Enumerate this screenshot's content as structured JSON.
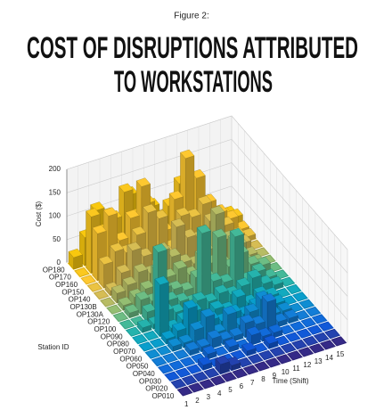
{
  "chart_data": {
    "type": "bar3d",
    "subtitle": "Figure 2:",
    "title": [
      "COST OF DISRUPTIONS ATTRIBUTED",
      "TO WORKSTATIONS"
    ],
    "zlabel": "Cost ($)",
    "ylabel": "Station ID",
    "xlabel": "Time (Shift)",
    "stations": [
      "OP180",
      "OP170",
      "OP160",
      "OP150",
      "OP140",
      "OP130B",
      "OP130A",
      "OP120",
      "OP100",
      "OP090",
      "OP080",
      "OP070",
      "OP060",
      "OP050",
      "OP040",
      "OP030",
      "OP020",
      "OP010"
    ],
    "times": [
      1,
      2,
      3,
      4,
      5,
      6,
      7,
      8,
      9,
      10,
      11,
      12,
      13,
      14,
      15
    ],
    "values": [
      [
        25,
        60,
        110,
        90,
        70,
        120,
        60,
        80,
        50,
        40,
        60,
        30,
        50,
        20,
        10
      ],
      [
        0,
        120,
        80,
        100,
        150,
        90,
        110,
        70,
        90,
        130,
        60,
        70,
        40,
        30,
        20
      ],
      [
        0,
        100,
        130,
        70,
        110,
        170,
        80,
        60,
        120,
        200,
        150,
        90,
        60,
        40,
        10
      ],
      [
        0,
        50,
        70,
        60,
        90,
        130,
        110,
        40,
        100,
        90,
        110,
        80,
        50,
        20,
        10
      ],
      [
        0,
        10,
        40,
        80,
        60,
        30,
        50,
        100,
        70,
        60,
        90,
        40,
        30,
        20,
        0
      ],
      [
        0,
        20,
        30,
        50,
        40,
        80,
        60,
        40,
        30,
        50,
        120,
        60,
        40,
        10,
        0
      ],
      [
        0,
        10,
        20,
        30,
        60,
        40,
        50,
        30,
        60,
        40,
        30,
        70,
        20,
        10,
        0
      ],
      [
        0,
        10,
        30,
        20,
        40,
        30,
        20,
        40,
        30,
        110,
        40,
        60,
        30,
        20,
        0
      ],
      [
        0,
        0,
        20,
        140,
        30,
        20,
        10,
        150,
        40,
        30,
        120,
        20,
        30,
        10,
        0
      ],
      [
        0,
        10,
        10,
        30,
        20,
        10,
        30,
        20,
        30,
        20,
        30,
        40,
        20,
        10,
        0
      ],
      [
        0,
        0,
        110,
        10,
        20,
        30,
        10,
        20,
        10,
        30,
        10,
        20,
        10,
        0,
        0
      ],
      [
        0,
        0,
        10,
        20,
        60,
        10,
        20,
        10,
        20,
        10,
        20,
        10,
        10,
        0,
        0
      ],
      [
        0,
        0,
        10,
        10,
        30,
        50,
        10,
        40,
        10,
        30,
        50,
        10,
        10,
        0,
        0
      ],
      [
        0,
        0,
        0,
        10,
        10,
        20,
        10,
        10,
        30,
        20,
        60,
        10,
        10,
        0,
        0
      ],
      [
        0,
        0,
        0,
        0,
        10,
        0,
        10,
        0,
        20,
        10,
        10,
        0,
        0,
        0,
        0
      ],
      [
        0,
        0,
        0,
        10,
        0,
        0,
        0,
        10,
        0,
        10,
        0,
        0,
        0,
        0,
        0
      ],
      [
        0,
        0,
        0,
        0,
        20,
        10,
        0,
        0,
        0,
        0,
        0,
        0,
        0,
        0,
        0
      ],
      [
        0,
        0,
        0,
        0,
        0,
        0,
        0,
        0,
        0,
        0,
        0,
        0,
        0,
        0,
        0
      ]
    ],
    "zlim": [
      0,
      200
    ],
    "zticks": [
      0,
      50,
      100,
      150,
      200
    ],
    "grid": true,
    "colormap": [
      "#352a87",
      "#0f5cdd",
      "#1481d6",
      "#06a4ca",
      "#2eb7a4",
      "#87bf77",
      "#d1bb59",
      "#fec832",
      "#f9c80e"
    ]
  }
}
